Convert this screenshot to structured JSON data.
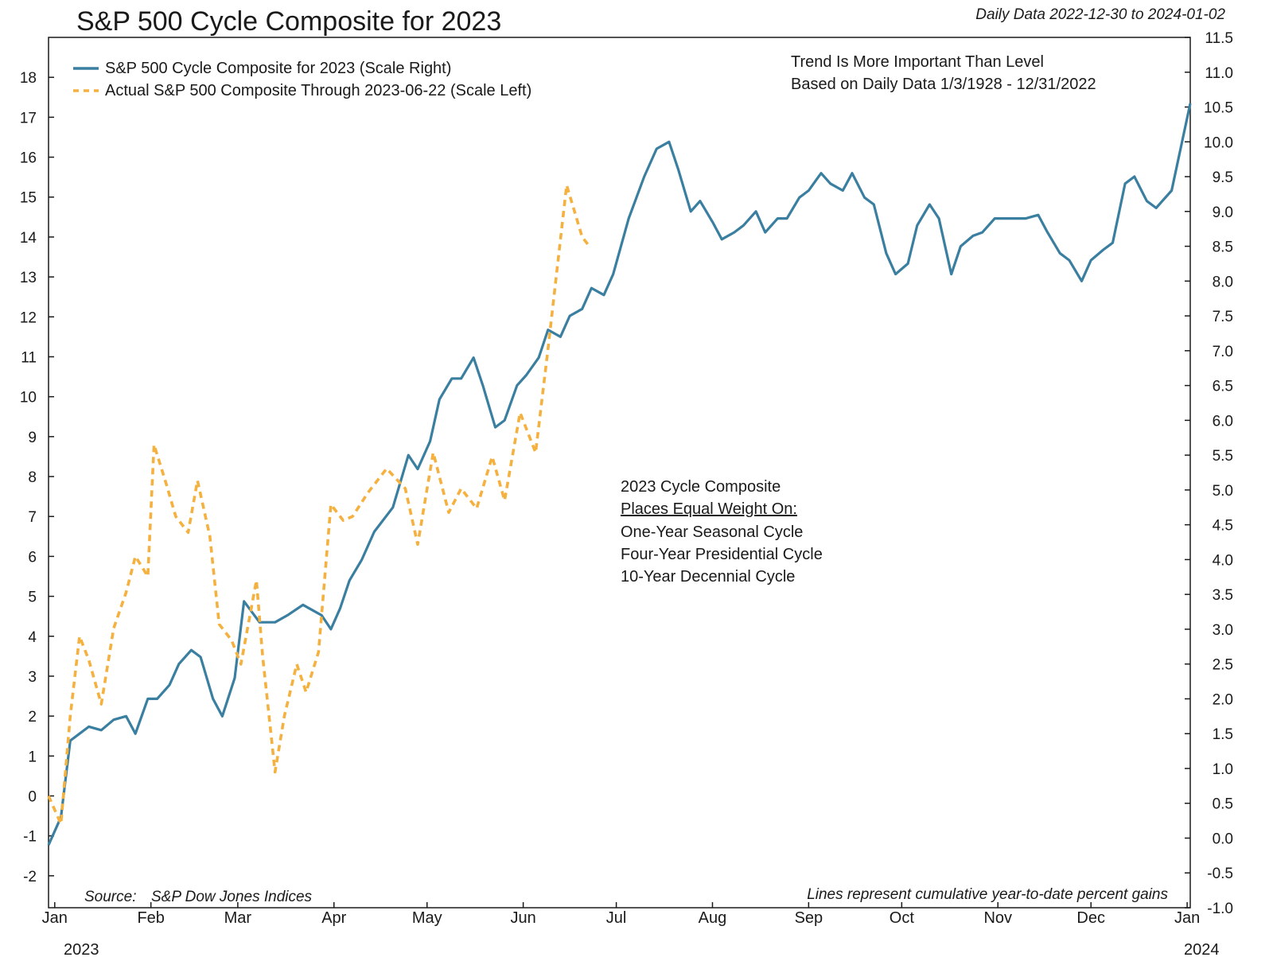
{
  "chart_data": {
    "type": "line",
    "title": "S&P 500 Cycle Composite for 2023",
    "subtitle": "Daily Data 2022-12-30 to 2024-01-02",
    "x_tick_labels": [
      "Jan",
      "Feb",
      "Mar",
      "Apr",
      "May",
      "Jun",
      "Jul",
      "Aug",
      "Sep",
      "Oct",
      "Nov",
      "Dec",
      "Jan"
    ],
    "x_year_labels": {
      "start": "2023",
      "end": "2024"
    },
    "x_range": [
      "2022-12-30",
      "2024-01-02"
    ],
    "y_left": {
      "ticks": [
        "-2",
        "-1",
        "0",
        "1",
        "2",
        "3",
        "4",
        "5",
        "6",
        "7",
        "8",
        "9",
        "10",
        "11",
        "12",
        "13",
        "14",
        "15",
        "16",
        "17",
        "18"
      ],
      "range": [
        -2.8,
        19
      ]
    },
    "y_right": {
      "ticks": [
        "-1.0",
        "-0.5",
        "0.0",
        "0.5",
        "1.0",
        "1.5",
        "2.0",
        "2.5",
        "3.0",
        "3.5",
        "4.0",
        "4.5",
        "5.0",
        "5.5",
        "6.0",
        "6.5",
        "7.0",
        "7.5",
        "8.0",
        "8.5",
        "9.0",
        "9.5",
        "10.0",
        "10.5",
        "11.0",
        "11.5"
      ],
      "range": [
        -1.0,
        11.5
      ]
    },
    "legend": {
      "position": "top-left",
      "entries": [
        {
          "label": "S&P 500 Cycle Composite for 2023 (Scale Right)",
          "color": "#3a7fa0",
          "style": "solid"
        },
        {
          "label": "Actual S&P 500 Composite Through 2023-06-22 (Scale Left)",
          "color": "#f5b13f",
          "style": "dashed"
        }
      ]
    },
    "annotations": {
      "trend_lines": [
        "Trend Is More Important Than Level",
        "Based on Daily Data 1/3/1928 - 12/31/2022"
      ],
      "composite_header": "2023 Cycle Composite",
      "composite_underlined": "Places Equal Weight On:",
      "composite_items": [
        "One-Year Seasonal Cycle",
        "Four-Year Presidential Cycle",
        "10-Year Decennial Cycle"
      ],
      "source_label": "Source:",
      "source_value": "S&P Dow Jones Indices",
      "footnote": "Lines represent cumulative year-to-date percent gains"
    },
    "series": [
      {
        "name": "S&P 500 Cycle Composite for 2023 (Scale Right)",
        "axis": "right",
        "color": "#3a7fa0",
        "x": [
          "2022-12-30",
          "2023-01-03",
          "2023-01-06",
          "2023-01-09",
          "2023-01-12",
          "2023-01-16",
          "2023-01-20",
          "2023-01-24",
          "2023-01-27",
          "2023-01-31",
          "2023-02-03",
          "2023-02-07",
          "2023-02-10",
          "2023-02-14",
          "2023-02-17",
          "2023-02-21",
          "2023-02-24",
          "2023-02-28",
          "2023-03-03",
          "2023-03-08",
          "2023-03-10",
          "2023-03-13",
          "2023-03-17",
          "2023-03-22",
          "2023-03-24",
          "2023-03-28",
          "2023-03-31",
          "2023-04-03",
          "2023-04-06",
          "2023-04-10",
          "2023-04-14",
          "2023-04-20",
          "2023-04-25",
          "2023-04-28",
          "2023-05-02",
          "2023-05-05",
          "2023-05-09",
          "2023-05-12",
          "2023-05-16",
          "2023-05-19",
          "2023-05-23",
          "2023-05-26",
          "2023-05-30",
          "2023-06-02",
          "2023-06-06",
          "2023-06-09",
          "2023-06-13",
          "2023-06-16",
          "2023-06-20",
          "2023-06-23",
          "2023-06-27",
          "2023-06-30",
          "2023-07-05",
          "2023-07-10",
          "2023-07-14",
          "2023-07-18",
          "2023-07-21",
          "2023-07-25",
          "2023-07-28",
          "2023-08-01",
          "2023-08-04",
          "2023-08-08",
          "2023-08-11",
          "2023-08-15",
          "2023-08-18",
          "2023-08-22",
          "2023-08-25",
          "2023-08-29",
          "2023-09-01",
          "2023-09-05",
          "2023-09-08",
          "2023-09-12",
          "2023-09-15",
          "2023-09-19",
          "2023-09-22",
          "2023-09-26",
          "2023-09-29",
          "2023-10-03",
          "2023-10-06",
          "2023-10-10",
          "2023-10-13",
          "2023-10-17",
          "2023-10-20",
          "2023-10-24",
          "2023-10-27",
          "2023-10-31",
          "2023-11-03",
          "2023-11-07",
          "2023-11-10",
          "2023-11-14",
          "2023-11-17",
          "2023-11-21",
          "2023-11-24",
          "2023-11-28",
          "2023-12-01",
          "2023-12-05",
          "2023-12-08",
          "2023-12-12",
          "2023-12-15",
          "2023-12-19",
          "2023-12-22",
          "2023-12-27",
          "2024-01-02"
        ],
        "y": [
          -0.1,
          0.3,
          1.4,
          1.5,
          1.6,
          1.55,
          1.7,
          1.75,
          1.5,
          2.0,
          2.0,
          2.2,
          2.5,
          2.7,
          2.6,
          2.0,
          1.75,
          2.3,
          3.4,
          3.1,
          3.1,
          3.1,
          3.2,
          3.35,
          3.3,
          3.2,
          3.0,
          3.3,
          3.7,
          4.0,
          4.4,
          4.75,
          5.5,
          5.3,
          5.7,
          6.3,
          6.6,
          6.6,
          6.9,
          6.5,
          5.9,
          6.0,
          6.5,
          6.65,
          6.9,
          7.3,
          7.2,
          7.5,
          7.6,
          7.9,
          7.8,
          8.1,
          8.9,
          9.5,
          9.9,
          10.0,
          9.6,
          9.0,
          9.15,
          8.85,
          8.6,
          8.7,
          8.8,
          9.0,
          8.7,
          8.9,
          8.9,
          9.2,
          9.3,
          9.55,
          9.4,
          9.3,
          9.55,
          9.2,
          9.1,
          8.4,
          8.1,
          8.25,
          8.8,
          9.1,
          8.9,
          8.1,
          8.5,
          8.65,
          8.7,
          8.9,
          8.9,
          8.9,
          8.9,
          8.95,
          8.7,
          8.4,
          8.3,
          8.0,
          8.3,
          8.45,
          8.55,
          9.4,
          9.5,
          9.15,
          9.05,
          9.3,
          10.55
        ]
      },
      {
        "name": "Actual S&P 500 Composite Through 2023-06-22 (Scale Left)",
        "axis": "left",
        "color": "#f5b13f",
        "x": [
          "2022-12-30",
          "2023-01-03",
          "2023-01-06",
          "2023-01-09",
          "2023-01-12",
          "2023-01-16",
          "2023-01-20",
          "2023-01-24",
          "2023-01-27",
          "2023-01-31",
          "2023-02-02",
          "2023-02-06",
          "2023-02-09",
          "2023-02-13",
          "2023-02-16",
          "2023-02-20",
          "2023-02-23",
          "2023-02-27",
          "2023-03-02",
          "2023-03-07",
          "2023-03-09",
          "2023-03-13",
          "2023-03-16",
          "2023-03-20",
          "2023-03-23",
          "2023-03-27",
          "2023-03-31",
          "2023-04-04",
          "2023-04-07",
          "2023-04-12",
          "2023-04-18",
          "2023-04-24",
          "2023-04-28",
          "2023-05-03",
          "2023-05-08",
          "2023-05-12",
          "2023-05-17",
          "2023-05-22",
          "2023-05-26",
          "2023-05-31",
          "2023-06-05",
          "2023-06-09",
          "2023-06-15",
          "2023-06-20",
          "2023-06-22"
        ],
        "y": [
          0.0,
          -0.7,
          2.0,
          4.0,
          3.4,
          2.3,
          4.2,
          5.1,
          6.0,
          5.5,
          8.8,
          7.8,
          7.0,
          6.6,
          7.9,
          6.5,
          4.3,
          3.9,
          3.3,
          5.4,
          3.5,
          0.6,
          2.0,
          3.3,
          2.6,
          3.6,
          7.3,
          6.9,
          7.0,
          7.6,
          8.2,
          7.7,
          6.3,
          8.6,
          7.1,
          7.7,
          7.2,
          8.5,
          7.4,
          9.6,
          8.6,
          11.2,
          15.3,
          14.0,
          13.8
        ]
      }
    ]
  }
}
